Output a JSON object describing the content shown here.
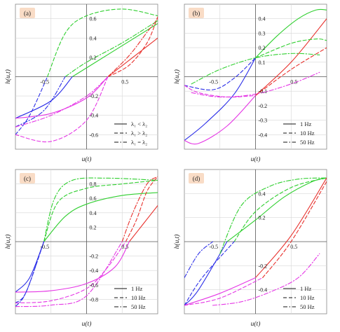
{
  "colors": {
    "red": "#e8302c",
    "green": "#2fcf2f",
    "blue": "#2c2fe8",
    "magenta": "#e536e5",
    "frame": "#888888"
  },
  "chart_data": [
    {
      "type": "line",
      "panel": "(a)",
      "xlabel": "u(t)",
      "ylabel": "h(u,t)",
      "xlim": [
        -1,
        1
      ],
      "ylim": [
        -0.75,
        0.75
      ],
      "xticks": [
        "-0.5",
        "0.5"
      ],
      "yticks": [
        {
          "v": 0.6,
          "t": "0.6"
        },
        {
          "v": 0.4,
          "t": "0.4"
        },
        {
          "v": 0.2,
          "t": "0.2"
        },
        {
          "v": -0.2,
          "t": "-0.2"
        },
        {
          "v": -0.4,
          "t": "-0.4"
        },
        {
          "v": -0.6,
          "t": "-0.6"
        }
      ],
      "legend": {
        "position": "bottom-right",
        "entries": [
          {
            "dash": "solid",
            "label": "λ₁ < λ₂"
          },
          {
            "dash": "dash",
            "label": "λ₁ > λ₂"
          },
          {
            "dash": "dashdot",
            "label": "λ₁ = λ₂"
          }
        ]
      },
      "series": [
        {
          "color": "red",
          "dash": "solid",
          "x": [
            0.3,
            1.0
          ],
          "y": [
            0.0,
            0.4
          ]
        },
        {
          "color": "green",
          "dash": "solid",
          "x": [
            -0.2,
            1.0
          ],
          "y": [
            0.0,
            0.55
          ]
        },
        {
          "color": "blue",
          "dash": "solid",
          "x": [
            -1.0,
            -0.5,
            -0.2
          ],
          "y": [
            -0.43,
            -0.25,
            0.0
          ]
        },
        {
          "color": "magenta",
          "dash": "solid",
          "x": [
            -1.0,
            -0.5,
            0.0,
            0.3
          ],
          "y": [
            -0.43,
            -0.38,
            -0.22,
            0.0
          ]
        },
        {
          "color": "red",
          "dash": "dash",
          "x": [
            0.3,
            0.6,
            0.85,
            1.0
          ],
          "y": [
            0.0,
            0.12,
            0.35,
            0.62
          ]
        },
        {
          "color": "green",
          "dash": "dash",
          "x": [
            -0.55,
            -0.3,
            0.0,
            0.5,
            1.0
          ],
          "y": [
            0.0,
            0.45,
            0.63,
            0.7,
            0.63
          ]
        },
        {
          "color": "blue",
          "dash": "dash",
          "x": [
            -1.0,
            -0.8,
            -0.55
          ],
          "y": [
            -0.6,
            -0.4,
            0.0
          ]
        },
        {
          "color": "magenta",
          "dash": "dash",
          "x": [
            -1.0,
            -0.5,
            0.0,
            0.3
          ],
          "y": [
            -0.6,
            -0.67,
            -0.45,
            0.0
          ]
        },
        {
          "color": "red",
          "dash": "dashdot",
          "x": [
            0.3,
            0.6,
            0.85,
            1.0
          ],
          "y": [
            0.0,
            0.22,
            0.46,
            0.6
          ]
        },
        {
          "color": "green",
          "dash": "dashdot",
          "x": [
            -0.3,
            0.0,
            0.5,
            1.0
          ],
          "y": [
            0.0,
            0.15,
            0.35,
            0.58
          ]
        },
        {
          "color": "blue",
          "dash": "dashdot",
          "x": [
            -1.0,
            -0.6,
            -0.3
          ],
          "y": [
            -0.52,
            -0.35,
            0.0
          ]
        },
        {
          "color": "magenta",
          "dash": "dashdot",
          "x": [
            -1.0,
            -0.5,
            0.0,
            0.3
          ],
          "y": [
            -0.52,
            -0.4,
            -0.2,
            0.0
          ]
        }
      ]
    },
    {
      "type": "line",
      "panel": "(b)",
      "xlabel": "u(t)",
      "ylabel": "h(u,t)",
      "xlim": [
        -1,
        1
      ],
      "ylim": [
        -0.5,
        0.5
      ],
      "xticks": [
        "-0.5",
        "0.5"
      ],
      "yticks": [
        {
          "v": 0.4,
          "t": "0.4"
        },
        {
          "v": 0.3,
          "t": "0.3"
        },
        {
          "v": 0.2,
          "t": "0.2"
        },
        {
          "v": 0.1,
          "t": "0.1"
        },
        {
          "v": -0.1,
          "t": "-0.1"
        },
        {
          "v": -0.2,
          "t": "-0.2"
        },
        {
          "v": -0.3,
          "t": "-0.3"
        },
        {
          "v": -0.4,
          "t": "-0.4"
        }
      ],
      "legend": {
        "position": "bottom-right",
        "entries": [
          {
            "dash": "solid",
            "label": "1 Hz"
          },
          {
            "dash": "dash",
            "label": "10 Hz"
          },
          {
            "dash": "dashdot",
            "label": "50 Hz"
          }
        ]
      },
      "series": [
        {
          "color": "green",
          "dash": "solid",
          "x": [
            0.0,
            0.3,
            0.6,
            0.85,
            1.0
          ],
          "y": [
            0.13,
            0.28,
            0.4,
            0.46,
            0.46
          ]
        },
        {
          "color": "red",
          "dash": "solid",
          "x": [
            0.0,
            0.5,
            1.0
          ],
          "y": [
            -0.13,
            0.1,
            0.4
          ]
        },
        {
          "color": "blue",
          "dash": "solid",
          "x": [
            -1.0,
            -0.7,
            -0.3,
            0.0
          ],
          "y": [
            -0.44,
            -0.32,
            -0.12,
            0.13
          ]
        },
        {
          "color": "magenta",
          "dash": "solid",
          "x": [
            -1.0,
            -0.8,
            -0.4,
            0.0
          ],
          "y": [
            -0.44,
            -0.46,
            -0.34,
            -0.13
          ]
        },
        {
          "color": "green",
          "dash": "dash",
          "x": [
            0.0,
            0.5,
            0.85,
            1.0
          ],
          "y": [
            0.13,
            0.23,
            0.26,
            0.25
          ]
        },
        {
          "color": "red",
          "dash": "dash",
          "x": [
            0.0,
            0.5,
            1.0
          ],
          "y": [
            -0.13,
            0.05,
            0.2
          ]
        },
        {
          "color": "blue",
          "dash": "dash",
          "x": [
            -1.0,
            -0.6,
            -0.3,
            0.0
          ],
          "y": [
            -0.06,
            -0.09,
            -0.01,
            0.13
          ]
        },
        {
          "color": "magenta",
          "dash": "dash",
          "x": [
            -1.0,
            -0.8,
            -0.4,
            0.0
          ],
          "y": [
            -0.06,
            -0.11,
            -0.14,
            -0.13
          ]
        },
        {
          "color": "green",
          "dash": "dashdot",
          "x": [
            -0.9,
            -0.5,
            0.0,
            0.5,
            0.9
          ],
          "y": [
            -0.05,
            0.05,
            0.13,
            0.16,
            0.15
          ]
        },
        {
          "color": "magenta",
          "dash": "dashdot",
          "x": [
            -0.9,
            -0.5,
            0.0,
            0.5,
            0.9
          ],
          "y": [
            -0.11,
            -0.14,
            -0.12,
            -0.05,
            0.03
          ]
        }
      ]
    },
    {
      "type": "line",
      "panel": "(c)",
      "xlabel": "u(t)",
      "ylabel": "h(u,t)",
      "xlim": [
        -1,
        1
      ],
      "ylim": [
        -1,
        1
      ],
      "xticks": [
        "-0.5",
        "0.5"
      ],
      "yticks": [
        {
          "v": 0.8,
          "t": "0.8"
        },
        {
          "v": 0.6,
          "t": "0.6"
        },
        {
          "v": 0.4,
          "t": "0.4"
        },
        {
          "v": 0.2,
          "t": "0.2"
        },
        {
          "v": -0.2,
          "t": "-0.2"
        },
        {
          "v": -0.4,
          "t": "-0.4"
        },
        {
          "v": -0.6,
          "t": "-0.6"
        },
        {
          "v": -0.8,
          "t": "-0.8"
        }
      ],
      "legend": {
        "position": "bottom-right",
        "entries": [
          {
            "dash": "solid",
            "label": "1 Hz"
          },
          {
            "dash": "dash",
            "label": "10 Hz"
          },
          {
            "dash": "dashdot",
            "label": "50 Hz"
          }
        ]
      },
      "series": [
        {
          "color": "green",
          "dash": "solid",
          "x": [
            -0.6,
            -0.3,
            0.0,
            0.5,
            1.0
          ],
          "y": [
            0.0,
            0.35,
            0.52,
            0.64,
            0.68
          ]
        },
        {
          "color": "red",
          "dash": "solid",
          "x": [
            0.6,
            0.8,
            1.0
          ],
          "y": [
            0.0,
            0.25,
            0.5
          ]
        },
        {
          "color": "blue",
          "dash": "solid",
          "x": [
            -1.0,
            -0.8,
            -0.6
          ],
          "y": [
            -0.7,
            -0.5,
            0.0
          ]
        },
        {
          "color": "magenta",
          "dash": "solid",
          "x": [
            -1.0,
            -0.5,
            0.0,
            0.4,
            0.6
          ],
          "y": [
            -0.7,
            -0.68,
            -0.58,
            -0.35,
            0.0
          ]
        },
        {
          "color": "green",
          "dash": "dash",
          "x": [
            -0.6,
            -0.4,
            0.0,
            0.5,
            1.0
          ],
          "y": [
            0.0,
            0.55,
            0.74,
            0.8,
            0.85
          ]
        },
        {
          "color": "red",
          "dash": "dash",
          "x": [
            0.55,
            0.7,
            0.85,
            1.0
          ],
          "y": [
            0.0,
            0.3,
            0.7,
            0.9
          ]
        },
        {
          "color": "blue",
          "dash": "dash",
          "x": [
            -1.0,
            -0.85,
            -0.6
          ],
          "y": [
            -0.85,
            -0.7,
            0.0
          ]
        },
        {
          "color": "magenta",
          "dash": "dash",
          "x": [
            -1.0,
            -0.5,
            0.0,
            0.3,
            0.55
          ],
          "y": [
            -0.85,
            -0.82,
            -0.65,
            -0.35,
            0.0
          ]
        },
        {
          "color": "green",
          "dash": "dashdot",
          "x": [
            -0.6,
            -0.45,
            -0.2,
            0.3,
            1.0
          ],
          "y": [
            0.0,
            0.6,
            0.85,
            0.88,
            0.85
          ]
        },
        {
          "color": "red",
          "dash": "dashdot",
          "x": [
            0.5,
            0.65,
            0.85,
            1.0
          ],
          "y": [
            0.0,
            0.4,
            0.8,
            0.9
          ]
        },
        {
          "color": "blue",
          "dash": "dashdot",
          "x": [
            -1.0,
            -0.85,
            -0.6
          ],
          "y": [
            -0.9,
            -0.7,
            0.0
          ]
        },
        {
          "color": "magenta",
          "dash": "dashdot",
          "x": [
            -1.0,
            -0.5,
            0.0,
            0.5
          ],
          "y": [
            -0.9,
            -0.88,
            -0.75,
            0.0
          ]
        }
      ]
    },
    {
      "type": "line",
      "panel": "(d)",
      "xlabel": "u(t)",
      "ylabel": "h(u,t)",
      "xlim": [
        -1,
        1
      ],
      "ylim": [
        -0.6,
        0.6
      ],
      "xticks": [
        "-0.5",
        "0.5"
      ],
      "yticks": [
        {
          "v": 0.4,
          "t": "0.4"
        },
        {
          "v": 0.2,
          "t": "0.2"
        },
        {
          "v": -0.2,
          "t": "-0.2"
        },
        {
          "v": -0.4,
          "t": "-0.4"
        }
      ],
      "legend": {
        "position": "bottom-right",
        "entries": [
          {
            "dash": "solid",
            "label": "1 Hz"
          },
          {
            "dash": "dash",
            "label": "10 Hz"
          },
          {
            "dash": "dashdot",
            "label": "50 Hz"
          }
        ]
      },
      "series": [
        {
          "color": "green",
          "dash": "solid",
          "x": [
            -0.4,
            0.0,
            0.4,
            0.8,
            1.0
          ],
          "y": [
            0.0,
            0.18,
            0.37,
            0.5,
            0.53
          ]
        },
        {
          "color": "red",
          "dash": "solid",
          "x": [
            0.0,
            0.5,
            1.0
          ],
          "y": [
            -0.3,
            0.05,
            0.53
          ]
        },
        {
          "color": "blue",
          "dash": "solid",
          "x": [
            -1.0,
            -0.8,
            -0.4
          ],
          "y": [
            -0.53,
            -0.4,
            0.0
          ]
        },
        {
          "color": "magenta",
          "dash": "solid",
          "x": [
            -1.0,
            -0.5,
            0.0
          ],
          "y": [
            -0.53,
            -0.43,
            -0.3
          ]
        },
        {
          "color": "green",
          "dash": "dash",
          "x": [
            -0.3,
            0.0,
            0.5,
            1.0
          ],
          "y": [
            0.0,
            0.25,
            0.45,
            0.53
          ]
        },
        {
          "color": "red",
          "dash": "dash",
          "x": [
            0.1,
            0.5,
            1.0
          ],
          "y": [
            -0.3,
            0.0,
            0.5
          ]
        },
        {
          "color": "blue",
          "dash": "dash",
          "x": [
            -1.0,
            -0.75,
            -0.3
          ],
          "y": [
            -0.53,
            -0.3,
            0.0
          ]
        },
        {
          "color": "magenta",
          "dash": "dash",
          "x": [
            -1.0,
            -0.5,
            0.1
          ],
          "y": [
            -0.53,
            -0.47,
            -0.3
          ]
        },
        {
          "color": "green",
          "dash": "dashdot",
          "x": [
            -0.5,
            -0.2,
            0.2,
            0.6,
            1.0
          ],
          "y": [
            -0.1,
            0.3,
            0.46,
            0.52,
            0.53
          ]
        },
        {
          "color": "magenta",
          "dash": "dashdot",
          "x": [
            -0.6,
            -0.2,
            0.2,
            0.6,
            0.9
          ],
          "y": [
            -0.53,
            -0.5,
            -0.42,
            -0.3,
            -0.1
          ]
        },
        {
          "color": "blue",
          "dash": "dashdot",
          "x": [
            -1.0,
            -0.8,
            -0.6
          ],
          "y": [
            -0.3,
            -0.1,
            0.0
          ]
        }
      ]
    }
  ]
}
